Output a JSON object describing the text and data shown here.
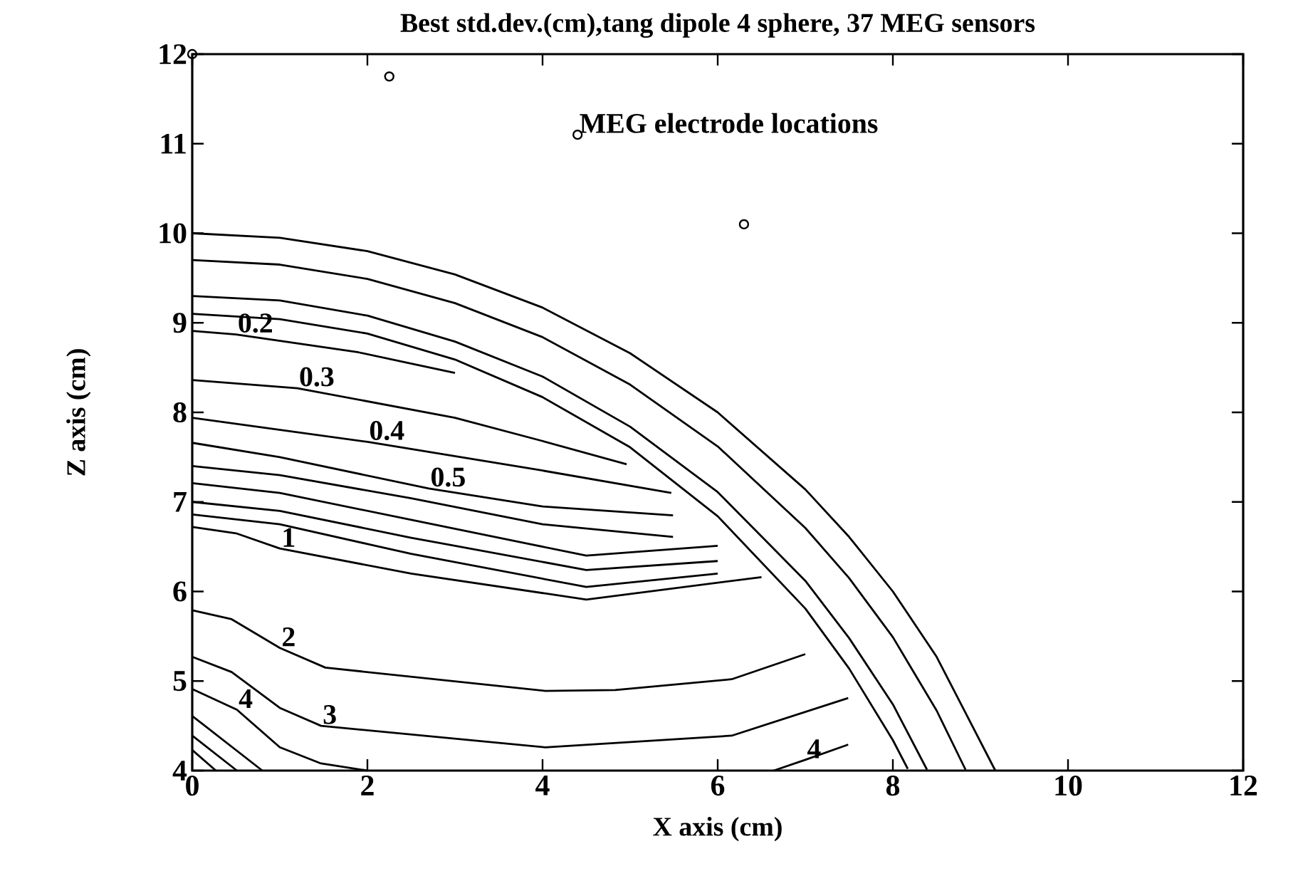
{
  "chart_data": {
    "type": "line",
    "title": "Best std.dev.(cm),tang dipole 4 sphere, 37 MEG sensors",
    "xlabel": "X axis (cm)",
    "ylabel": "Z axis (cm)",
    "xlim": [
      0,
      12
    ],
    "ylim": [
      4,
      12
    ],
    "xticks": [
      0,
      2,
      4,
      6,
      8,
      10,
      12
    ],
    "yticks": [
      4,
      5,
      6,
      7,
      8,
      9,
      10,
      11,
      12
    ],
    "series": [
      {
        "color": "#000000",
        "x": [
          0,
          1,
          2,
          3,
          4,
          5,
          6,
          7,
          7.5,
          8,
          8.5,
          9.17
        ],
        "values": [
          10,
          9.95,
          9.8,
          9.54,
          9.17,
          8.66,
          8.0,
          7.14,
          6.61,
          6.0,
          5.27,
          4.0
        ]
      },
      {
        "color": "#000000",
        "x": [
          0,
          1,
          2,
          3,
          4,
          5,
          6,
          7,
          7.5,
          8,
          8.5,
          8.83
        ],
        "values": [
          9.7,
          9.65,
          9.49,
          9.22,
          8.84,
          8.31,
          7.62,
          6.71,
          6.15,
          5.49,
          4.67,
          4.01
        ]
      },
      {
        "color": "#000000",
        "x": [
          0,
          1,
          2,
          3,
          4,
          5,
          6,
          7,
          7.5,
          8,
          8.39
        ],
        "values": [
          9.3,
          9.25,
          9.08,
          8.79,
          8.4,
          7.84,
          7.11,
          6.12,
          5.48,
          4.74,
          4.01
        ]
      },
      {
        "color": "#000000",
        "x": [
          0,
          1,
          2,
          3,
          4,
          5,
          6,
          7,
          7.5,
          8,
          8.17
        ],
        "values": [
          9.1,
          9.04,
          8.88,
          8.59,
          8.17,
          7.61,
          6.84,
          5.81,
          5.14,
          4.34,
          4.02
        ]
      },
      {
        "color": "#000000",
        "x": [
          0,
          0.5,
          1.9,
          3.0
        ],
        "values": [
          8.91,
          8.87,
          8.67,
          8.44
        ]
      },
      {
        "color": "#000000",
        "x": [
          0,
          1.2,
          3,
          4,
          4.96
        ],
        "values": [
          8.36,
          8.27,
          7.94,
          7.68,
          7.42
        ]
      },
      {
        "color": "#000000",
        "x": [
          0,
          2,
          4,
          5.47
        ],
        "values": [
          7.94,
          7.67,
          7.35,
          7.1
        ]
      },
      {
        "color": "#000000",
        "x": [
          0,
          1,
          2.7,
          4,
          5.49
        ],
        "values": [
          7.66,
          7.5,
          7.15,
          6.95,
          6.85
        ]
      },
      {
        "color": "#000000",
        "x": [
          0,
          1,
          2.5,
          4,
          5.49
        ],
        "values": [
          7.4,
          7.3,
          7.04,
          6.75,
          6.61
        ]
      },
      {
        "color": "#000000",
        "x": [
          0,
          1,
          2.5,
          4.5,
          6
        ],
        "values": [
          7.21,
          7.1,
          6.8,
          6.4,
          6.51
        ]
      },
      {
        "color": "#000000",
        "x": [
          0,
          1,
          2.5,
          4.5,
          6
        ],
        "values": [
          7.0,
          6.9,
          6.6,
          6.24,
          6.34
        ]
      },
      {
        "color": "#000000",
        "x": [
          0,
          1,
          2.5,
          4.5,
          6
        ],
        "values": [
          6.86,
          6.75,
          6.42,
          6.05,
          6.2
        ]
      },
      {
        "color": "#000000",
        "x": [
          0,
          0.5,
          1,
          2.5,
          4.5,
          6.5
        ],
        "values": [
          6.72,
          6.65,
          6.48,
          6.2,
          5.91,
          6.16
        ]
      },
      {
        "color": "#000000",
        "x": [
          0,
          0.45,
          1,
          1.52,
          4.03,
          4.83,
          6.16,
          7.0
        ],
        "values": [
          5.79,
          5.69,
          5.37,
          5.15,
          4.89,
          4.9,
          5.02,
          5.3
        ]
      },
      {
        "color": "#000000",
        "x": [
          0,
          0.45,
          1,
          1.47,
          4.03,
          6.16,
          7.49
        ],
        "values": [
          5.27,
          5.1,
          4.7,
          4.5,
          4.26,
          4.39,
          4.81
        ]
      },
      {
        "color": "#000000",
        "x": [
          0,
          0.51,
          1,
          1.47,
          2.0,
          4.0,
          6.64,
          7.0,
          7.49
        ],
        "values": [
          4.91,
          4.68,
          4.26,
          4.08,
          4.0,
          null,
          4.0,
          4.12,
          4.29
        ]
      },
      {
        "color": "#000000",
        "x": [
          0,
          0.8
        ],
        "values": [
          4.61,
          4.0
        ]
      },
      {
        "color": "#000000",
        "x": [
          0,
          0.51
        ],
        "values": [
          4.39,
          4.0
        ]
      },
      {
        "color": "#000000",
        "x": [
          0,
          0.27
        ],
        "values": [
          4.23,
          4.0
        ]
      },
      {
        "type": "scatter",
        "color": "#000000",
        "marker": "circle",
        "x": [
          0,
          2.25,
          4.4,
          6.3
        ],
        "values": [
          12,
          11.75,
          11.1,
          10.1
        ]
      }
    ],
    "annotations": [
      {
        "text": "MEG electrode locations",
        "x": 4.4,
        "y": 11.1
      },
      {
        "text": "0.2",
        "x": 0.5,
        "y": 8.87
      },
      {
        "text": "0.3",
        "x": 1.2,
        "y": 8.27
      },
      {
        "text": "0.4",
        "x": 2,
        "y": 7.67
      },
      {
        "text": "0.5",
        "x": 2.7,
        "y": 7.15
      },
      {
        "text": "1",
        "x": 1,
        "y": 6.48
      },
      {
        "text": "2",
        "x": 1,
        "y": 5.37
      },
      {
        "text": "3",
        "x": 1.47,
        "y": 4.5
      },
      {
        "text": "4",
        "x": 0.51,
        "y": 4.68
      },
      {
        "text": "4",
        "x": 7.0,
        "y": 4.12
      }
    ]
  }
}
